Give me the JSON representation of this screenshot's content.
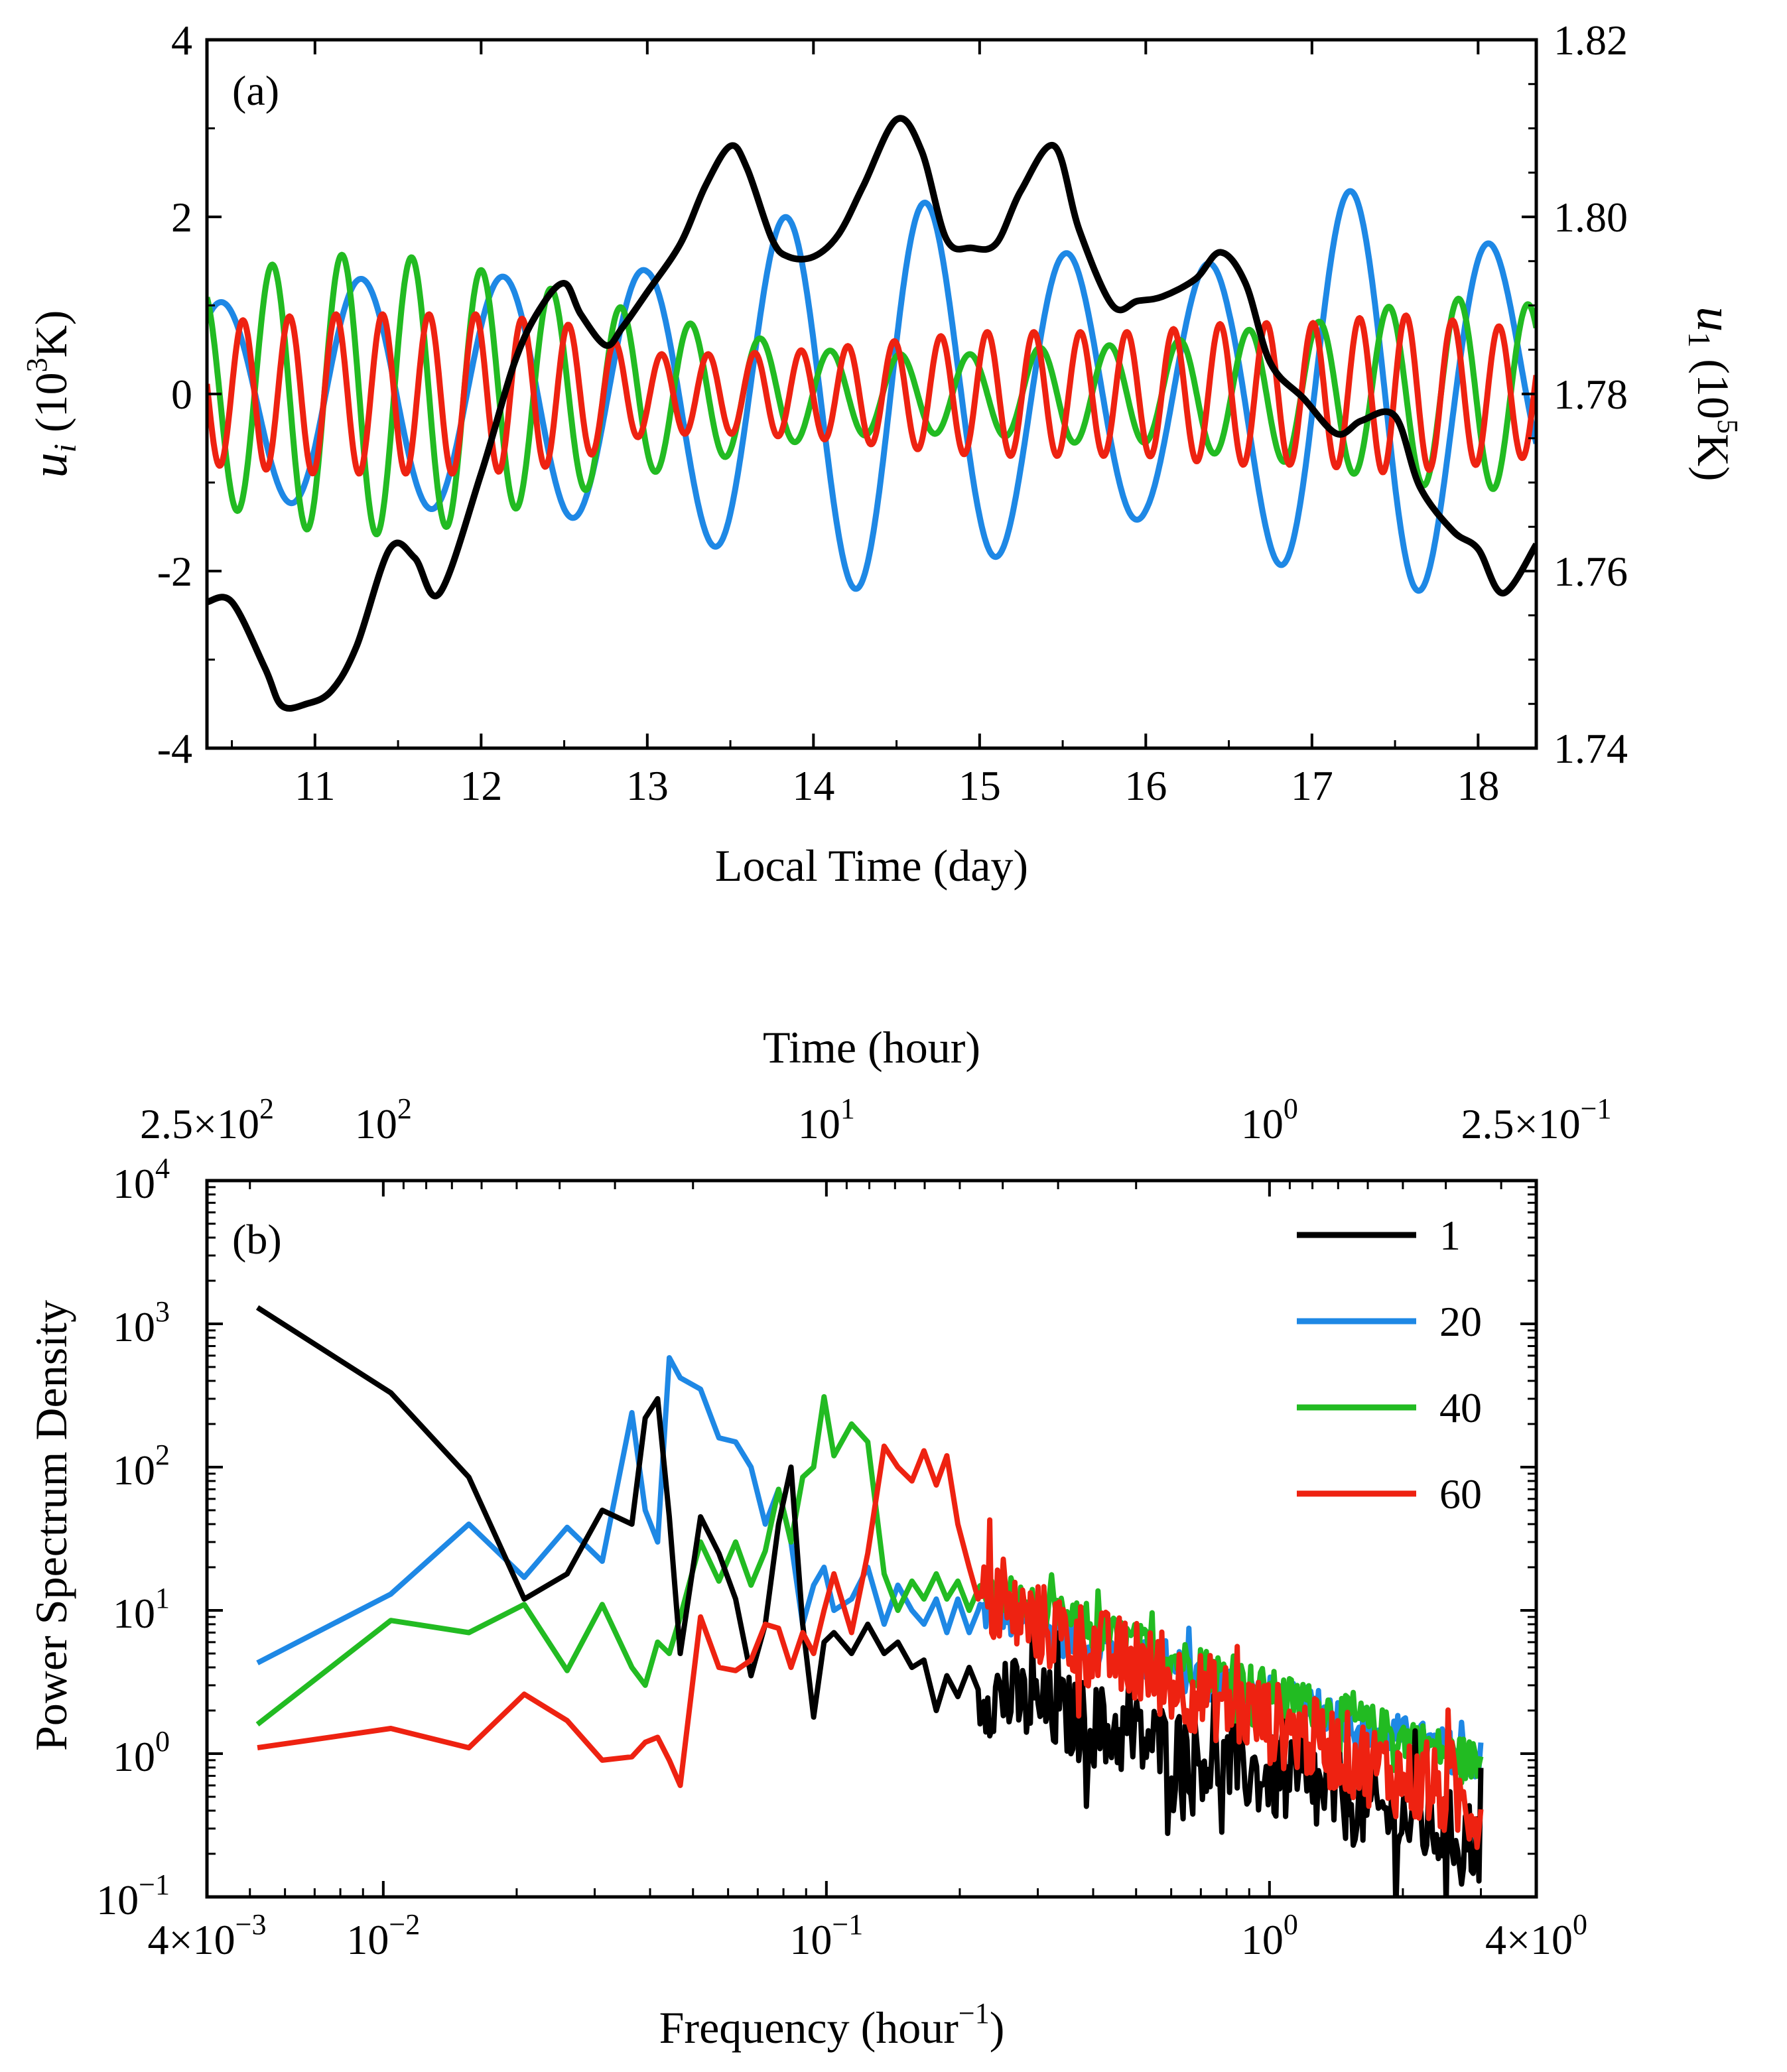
{
  "colors": {
    "series_1": "#000000",
    "series_20": "#1e88e5",
    "series_40": "#22bb22",
    "series_60": "#ee2211"
  },
  "chart_data": [
    {
      "type": "line",
      "panel_label": "(a)",
      "xlabel": "Local Time (day)",
      "ylabel_left": {
        "sym": "u",
        "sub": "i",
        "unit_pre": " (10",
        "sup": "3",
        "unit_post": "K)"
      },
      "ylabel_right": {
        "sym": "u",
        "sub": "1",
        "unit_pre": " (10",
        "sup": "5",
        "unit_post": "K)"
      },
      "xlim": [
        10.35,
        18.35
      ],
      "ylim_left": [
        -4,
        4
      ],
      "ylim_right": [
        1.74,
        1.82
      ],
      "x_ticks": [
        "11",
        "12",
        "13",
        "14",
        "15",
        "16",
        "17",
        "18"
      ],
      "y_ticks_left": [
        "4",
        "2",
        "0",
        "-2",
        "-4"
      ],
      "y_ticks_right": [
        "1.82",
        "1.80",
        "1.78",
        "1.76",
        "1.74"
      ],
      "grid": false,
      "series": [
        {
          "name": "1",
          "axis": "right",
          "color_key": "series_1",
          "x": [
            10.35,
            10.5,
            10.7,
            10.8,
            10.95,
            11.1,
            11.25,
            11.45,
            11.6,
            11.75,
            12.0,
            12.2,
            12.35,
            12.5,
            12.6,
            12.75,
            12.85,
            13.0,
            13.2,
            13.35,
            13.5,
            13.6,
            13.75,
            13.85,
            14.0,
            14.15,
            14.3,
            14.5,
            14.65,
            14.8,
            14.95,
            15.1,
            15.25,
            15.45,
            15.6,
            15.8,
            15.95,
            16.1,
            16.3,
            16.45,
            16.6,
            16.75,
            16.95,
            17.15,
            17.3,
            17.5,
            17.65,
            17.85,
            18.0,
            18.15,
            18.35
          ],
          "y": [
            1.7565,
            1.7565,
            1.749,
            1.7448,
            1.745,
            1.7465,
            1.7515,
            1.7625,
            1.7615,
            1.7575,
            1.771,
            1.7835,
            1.7895,
            1.7925,
            1.789,
            1.7855,
            1.7875,
            1.7915,
            1.797,
            1.8035,
            1.808,
            1.8055,
            1.7975,
            1.7955,
            1.7955,
            1.798,
            1.8035,
            1.811,
            1.8075,
            1.7975,
            1.7965,
            1.797,
            1.803,
            1.808,
            1.7985,
            1.79,
            1.7905,
            1.791,
            1.793,
            1.796,
            1.7925,
            1.7835,
            1.7795,
            1.7755,
            1.777,
            1.7775,
            1.7695,
            1.7645,
            1.7625,
            1.7575,
            1.763
          ]
        },
        {
          "name": "20",
          "axis": "left",
          "color_key": "series_20",
          "model": "oscillation",
          "period_days": 0.85,
          "amp_points": [
            [
              10.35,
              1.0
            ],
            [
              11.0,
              1.3
            ],
            [
              12.0,
              1.3
            ],
            [
              12.5,
              1.4
            ],
            [
              13.0,
              1.4
            ],
            [
              13.5,
              1.8
            ],
            [
              14.0,
              2.1
            ],
            [
              14.5,
              2.3
            ],
            [
              15.0,
              1.9
            ],
            [
              15.5,
              1.6
            ],
            [
              16.0,
              1.4
            ],
            [
              16.5,
              1.5
            ],
            [
              17.0,
              2.2
            ],
            [
              17.5,
              2.4
            ],
            [
              18.0,
              1.8
            ],
            [
              18.35,
              1.3
            ]
          ],
          "x_range": [
            10.35,
            18.35
          ]
        },
        {
          "name": "40",
          "axis": "left",
          "color_key": "series_40",
          "model": "oscillation",
          "period_days": 0.42,
          "amp_points": [
            [
              10.35,
              1.2
            ],
            [
              10.8,
              1.5
            ],
            [
              11.3,
              1.6
            ],
            [
              11.8,
              1.5
            ],
            [
              12.4,
              1.2
            ],
            [
              13.0,
              0.9
            ],
            [
              13.5,
              0.7
            ],
            [
              14.0,
              0.5
            ],
            [
              14.5,
              0.45
            ],
            [
              15.0,
              0.45
            ],
            [
              15.5,
              0.55
            ],
            [
              16.0,
              0.55
            ],
            [
              16.5,
              0.7
            ],
            [
              17.0,
              0.8
            ],
            [
              17.5,
              1.0
            ],
            [
              18.0,
              1.1
            ],
            [
              18.35,
              1.0
            ]
          ],
          "x_range": [
            10.35,
            18.35
          ]
        },
        {
          "name": "60",
          "axis": "left",
          "color_key": "series_60",
          "model": "oscillation",
          "period_days": 0.28,
          "amp_points": [
            [
              10.35,
              0.8
            ],
            [
              11.0,
              0.9
            ],
            [
              12.0,
              0.9
            ],
            [
              12.5,
              0.8
            ],
            [
              13.0,
              0.45
            ],
            [
              13.5,
              0.45
            ],
            [
              14.0,
              0.5
            ],
            [
              14.5,
              0.6
            ],
            [
              15.0,
              0.7
            ],
            [
              15.5,
              0.7
            ],
            [
              16.0,
              0.7
            ],
            [
              16.5,
              0.8
            ],
            [
              17.0,
              0.8
            ],
            [
              17.5,
              0.9
            ],
            [
              18.0,
              0.8
            ],
            [
              18.35,
              0.7
            ]
          ],
          "x_range": [
            10.35,
            18.35
          ]
        }
      ]
    },
    {
      "type": "line",
      "panel_label": "(b)",
      "xlabel": {
        "pre": "Frequency (hour",
        "sup": "−1",
        "post": ")"
      },
      "ylabel": "Power Spectrum Density",
      "top_xlabel": "Time (hour)",
      "x_scale": "log",
      "y_scale": "log",
      "xlim": [
        0.004,
        4.0
      ],
      "ylim": [
        0.1,
        10000
      ],
      "x_ticks": [
        {
          "value": 0.004,
          "mant": "4×10",
          "exp": "−3"
        },
        {
          "value": 0.01,
          "mant": "10",
          "exp": "−2"
        },
        {
          "value": 0.1,
          "mant": "10",
          "exp": "−1"
        },
        {
          "value": 1,
          "mant": "10",
          "exp": "0"
        },
        {
          "value": 4.0,
          "mant": "4×10",
          "exp": "0"
        }
      ],
      "top_x_ticks": [
        {
          "hours": 250,
          "mant": "2.5×10",
          "exp": "2"
        },
        {
          "hours": 100,
          "mant": "10",
          "exp": "2"
        },
        {
          "hours": 10,
          "mant": "10",
          "exp": "1"
        },
        {
          "hours": 1,
          "mant": "10",
          "exp": "0"
        },
        {
          "hours": 0.25,
          "mant": "2.5×10",
          "exp": "−1"
        }
      ],
      "y_ticks": [
        {
          "value": 10000,
          "mant": "10",
          "exp": "4"
        },
        {
          "value": 1000,
          "mant": "10",
          "exp": "3"
        },
        {
          "value": 100,
          "mant": "10",
          "exp": "2"
        },
        {
          "value": 10,
          "mant": "10",
          "exp": "1"
        },
        {
          "value": 1,
          "mant": "10",
          "exp": "0"
        },
        {
          "value": 0.1,
          "mant": "10",
          "exp": "−1"
        }
      ],
      "legend": {
        "position": "top-right",
        "entries": [
          "1",
          "20",
          "40",
          "60"
        ]
      },
      "grid": false,
      "series": [
        {
          "name": "1",
          "color_key": "series_1",
          "x": [
            0.0052,
            0.0104,
            0.0156,
            0.0208,
            0.026,
            0.0312,
            0.0364,
            0.039,
            0.0416,
            0.0442,
            0.0468,
            0.052,
            0.0572,
            0.0624,
            0.0676,
            0.0728,
            0.078,
            0.0832,
            0.0884,
            0.0936,
            0.0988,
            0.104,
            0.114,
            0.124,
            0.135,
            0.145,
            0.156,
            0.166,
            0.177,
            0.187,
            0.198,
            0.21,
            0.22
          ],
          "y": [
            1300,
            330,
            85,
            12,
            18,
            50,
            40,
            220,
            300,
            45,
            5,
            45,
            25,
            12,
            3.5,
            8,
            40,
            100,
            8,
            1.8,
            6,
            7,
            5,
            8,
            5,
            6,
            4,
            4.5,
            2,
            3.5,
            2.5,
            4,
            2.8
          ],
          "tail": {
            "x_start": 0.22,
            "x_end": 3.0,
            "y_start": 2.8,
            "y_end": 0.24,
            "jitter": 0.3
          }
        },
        {
          "name": "20",
          "color_key": "series_20",
          "x": [
            0.0052,
            0.0104,
            0.0156,
            0.0208,
            0.026,
            0.0312,
            0.0364,
            0.039,
            0.0416,
            0.0442,
            0.0468,
            0.052,
            0.0572,
            0.0624,
            0.0676,
            0.0728,
            0.078,
            0.0832,
            0.0884,
            0.0936,
            0.0988,
            0.104,
            0.114,
            0.124,
            0.135,
            0.145,
            0.156,
            0.166,
            0.177,
            0.187,
            0.198,
            0.21,
            0.22
          ],
          "y": [
            4.3,
            13,
            40,
            17,
            38,
            22,
            240,
            50,
            30,
            580,
            420,
            350,
            160,
            150,
            100,
            40,
            70,
            30,
            8,
            15,
            20,
            10,
            12,
            20,
            8,
            15,
            10,
            8,
            12,
            7,
            12,
            7,
            10
          ],
          "tail": {
            "x_start": 0.22,
            "x_end": 3.0,
            "y_start": 10,
            "y_end": 0.9,
            "jitter": 0.15
          }
        },
        {
          "name": "40",
          "color_key": "series_40",
          "x": [
            0.0052,
            0.0104,
            0.0156,
            0.0208,
            0.026,
            0.0312,
            0.0364,
            0.039,
            0.0416,
            0.0442,
            0.0468,
            0.052,
            0.0572,
            0.0624,
            0.0676,
            0.0728,
            0.078,
            0.0832,
            0.0884,
            0.0936,
            0.0988,
            0.104,
            0.114,
            0.124,
            0.135,
            0.145,
            0.156,
            0.166,
            0.177,
            0.187,
            0.198,
            0.21,
            0.22
          ],
          "y": [
            1.6,
            8.5,
            7,
            11,
            3.8,
            11,
            4,
            3,
            6,
            5,
            9,
            30,
            16,
            30,
            15,
            26,
            70,
            30,
            85,
            100,
            310,
            120,
            200,
            150,
            18,
            10,
            16,
            12,
            18,
            12,
            16,
            10,
            14
          ],
          "tail": {
            "x_start": 0.22,
            "x_end": 3.0,
            "y_start": 14,
            "y_end": 0.85,
            "jitter": 0.15
          }
        },
        {
          "name": "60",
          "color_key": "series_60",
          "x": [
            0.0052,
            0.0104,
            0.0156,
            0.0208,
            0.026,
            0.0312,
            0.0364,
            0.039,
            0.0416,
            0.0442,
            0.0468,
            0.052,
            0.0572,
            0.0624,
            0.0676,
            0.0728,
            0.078,
            0.0832,
            0.0884,
            0.0936,
            0.0988,
            0.104,
            0.114,
            0.124,
            0.135,
            0.145,
            0.156,
            0.166,
            0.177,
            0.187,
            0.198,
            0.21,
            0.22
          ],
          "y": [
            1.1,
            1.5,
            1.1,
            2.6,
            1.7,
            0.9,
            0.95,
            1.2,
            1.3,
            0.9,
            0.6,
            9,
            4,
            3.8,
            4.5,
            8,
            7.5,
            4,
            7,
            5,
            10,
            18,
            7,
            25,
            140,
            100,
            80,
            130,
            75,
            120,
            40,
            20,
            12
          ],
          "tail": {
            "x_start": 0.22,
            "x_end": 3.0,
            "y_start": 12,
            "y_end": 0.4,
            "jitter": 0.3
          }
        }
      ]
    }
  ]
}
